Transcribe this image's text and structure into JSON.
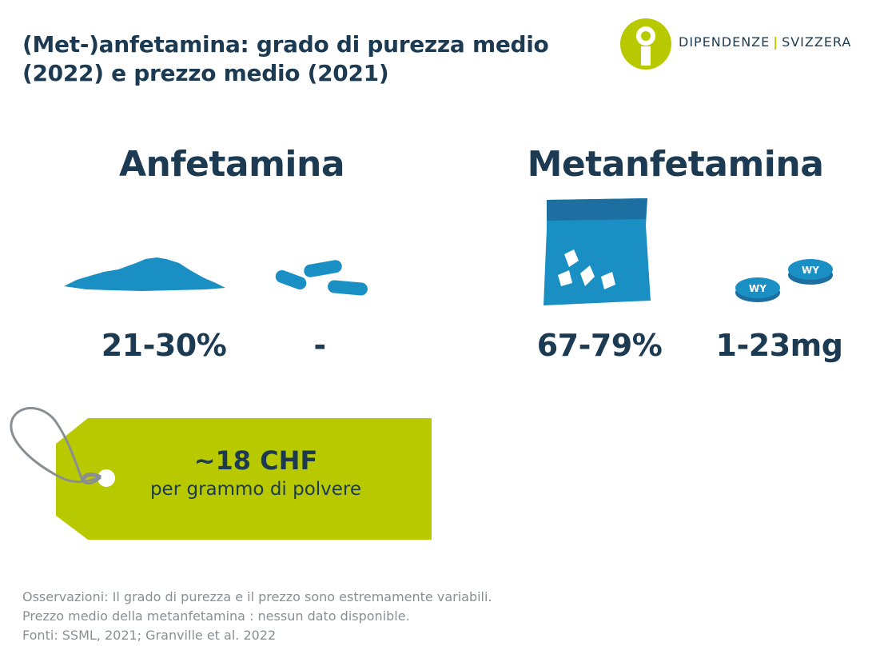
{
  "title": {
    "line1": "(Met-)anfetamina: grado di purezza medio",
    "line2": "(2022) e prezzo medio (2021)"
  },
  "logo": {
    "icon": "info-person-icon",
    "left_text": "DIPENDENZE",
    "separator": "|",
    "right_text": "SVIZZERA",
    "circle_color": "#b9c900"
  },
  "sections": {
    "amphetamine": {
      "heading": "Anfetamina",
      "powder_icon": "powder-pile-icon",
      "powder_value": "21-30%",
      "capsule_icon": "capsules-icon",
      "capsule_value": "-"
    },
    "methamphetamine": {
      "heading": "Metanfetamina",
      "bag_icon": "crystal-bag-icon",
      "bag_value": "67-79%",
      "pill_icon": "wy-pills-icon",
      "pill_value": "1-23mg",
      "pill_imprint": "WY"
    }
  },
  "price_tag": {
    "icon": "price-tag-icon",
    "price": "~18 CHF",
    "unit": "per grammo di polvere",
    "color": "#b9c900"
  },
  "notes": [
    "Osservazioni: Il grado di purezza e il prezzo sono estremamente variabili.",
    "Prezzo medio della metanfetamina : nessun dato disponible.",
    "Fonti: SSML, 2021; Granville et al. 2022"
  ],
  "colors": {
    "navy": "#1c3a52",
    "blue": "#1a8fc4",
    "lime": "#b9c900",
    "grey_text": "#8a8f93"
  }
}
